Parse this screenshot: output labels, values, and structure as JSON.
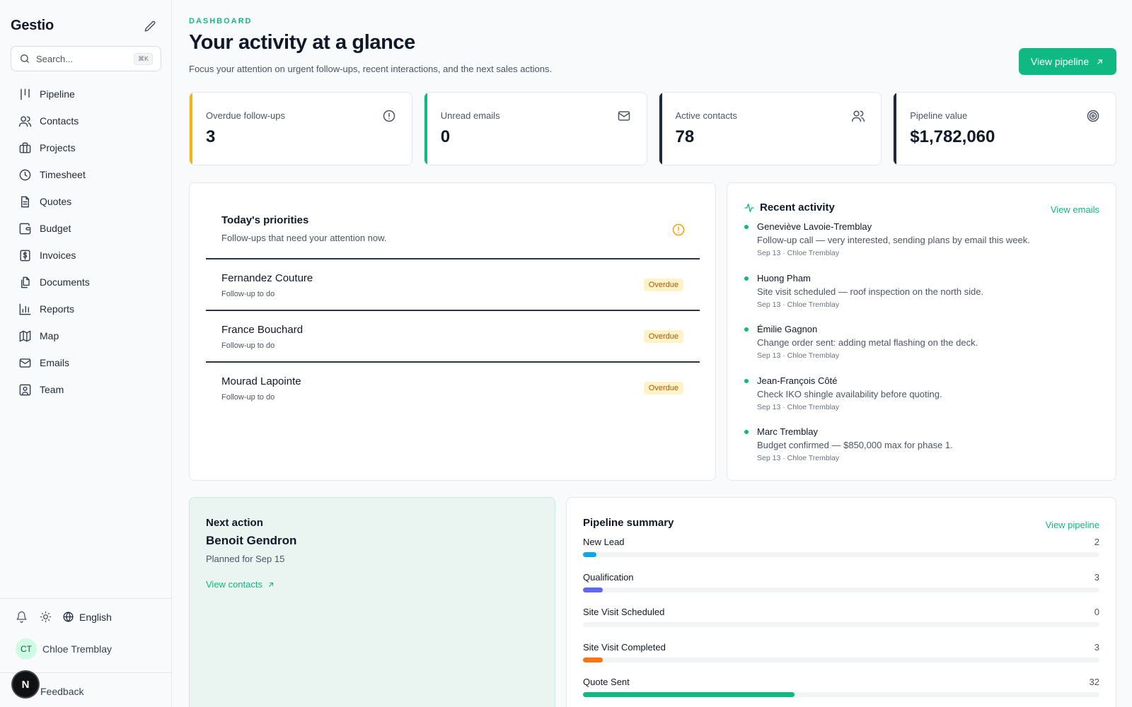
{
  "app": {
    "name": "Gestio"
  },
  "search": {
    "placeholder": "Search...",
    "shortcut": "⌘K"
  },
  "sidebar": {
    "items": [
      {
        "label": "Pipeline",
        "icon": "pipeline-icon"
      },
      {
        "label": "Contacts",
        "icon": "users-icon"
      },
      {
        "label": "Projects",
        "icon": "briefcase-icon"
      },
      {
        "label": "Timesheet",
        "icon": "clock-icon"
      },
      {
        "label": "Quotes",
        "icon": "file-text-icon"
      },
      {
        "label": "Budget",
        "icon": "wallet-icon"
      },
      {
        "label": "Invoices",
        "icon": "invoice-icon"
      },
      {
        "label": "Documents",
        "icon": "files-icon"
      },
      {
        "label": "Reports",
        "icon": "bar-chart-icon"
      },
      {
        "label": "Map",
        "icon": "map-icon"
      },
      {
        "label": "Emails",
        "icon": "mail-icon"
      },
      {
        "label": "Team",
        "icon": "user-square-icon"
      }
    ],
    "language": "English",
    "user": {
      "initials": "CT",
      "name": "Chloe Tremblay"
    },
    "feedback": "Feedback",
    "badge": "N"
  },
  "header": {
    "eyebrow": "DASHBOARD",
    "title": "Your activity at a glance",
    "subtitle": "Focus your attention on urgent follow-ups, recent interactions, and the next sales actions.",
    "cta": "View pipeline"
  },
  "stats": [
    {
      "label": "Overdue follow-ups",
      "value": "3",
      "icon": "alert-circle-icon",
      "accent": "#f5b50a"
    },
    {
      "label": "Unread emails",
      "value": "0",
      "icon": "mail-icon",
      "accent": "#10b981"
    },
    {
      "label": "Active contacts",
      "value": "78",
      "icon": "users-icon",
      "accent": "#1e293b"
    },
    {
      "label": "Pipeline value",
      "value": "$1,782,060",
      "icon": "target-icon",
      "accent": "#1e293b"
    }
  ],
  "priorities": {
    "title": "Today's priorities",
    "subtitle": "Follow-ups that need your attention now.",
    "items": [
      {
        "name": "Fernandez Couture",
        "note": "Follow-up to do",
        "badge": "Overdue"
      },
      {
        "name": "France Bouchard",
        "note": "Follow-up to do",
        "badge": "Overdue"
      },
      {
        "name": "Mourad Lapointe",
        "note": "Follow-up to do",
        "badge": "Overdue"
      }
    ]
  },
  "activity": {
    "title": "Recent activity",
    "link": "View emails",
    "items": [
      {
        "name": "Geneviève Lavoie-Tremblay",
        "desc": "Follow-up call — very interested, sending plans by email this week.",
        "meta": "Sep 13 · Chloe Tremblay"
      },
      {
        "name": "Huong Pham",
        "desc": "Site visit scheduled — roof inspection on the north side.",
        "meta": "Sep 13 · Chloe Tremblay"
      },
      {
        "name": "Émilie Gagnon",
        "desc": "Change order sent: adding metal flashing on the deck.",
        "meta": "Sep 13 · Chloe Tremblay"
      },
      {
        "name": "Jean-François Côté",
        "desc": "Check IKO shingle availability before quoting.",
        "meta": "Sep 13 · Chloe Tremblay"
      },
      {
        "name": "Marc Tremblay",
        "desc": "Budget confirmed — $850,000 max for phase 1.",
        "meta": "Sep 13 · Chloe Tremblay"
      }
    ]
  },
  "next_action": {
    "title": "Next action",
    "name": "Benoit Gendron",
    "planned": "Planned for Sep 15",
    "link": "View contacts"
  },
  "pipeline": {
    "title": "Pipeline summary",
    "link": "View pipeline",
    "stages": [
      {
        "label": "New Lead",
        "count": "2",
        "fraction": 0.026,
        "color": "#0ea5e9"
      },
      {
        "label": "Qualification",
        "count": "3",
        "fraction": 0.038,
        "color": "#6366f1"
      },
      {
        "label": "Site Visit Scheduled",
        "count": "0",
        "fraction": 0,
        "color": "#10b981"
      },
      {
        "label": "Site Visit Completed",
        "count": "3",
        "fraction": 0.038,
        "color": "#f97316"
      },
      {
        "label": "Quote Sent",
        "count": "32",
        "fraction": 0.41,
        "color": "#10b981"
      }
    ]
  }
}
